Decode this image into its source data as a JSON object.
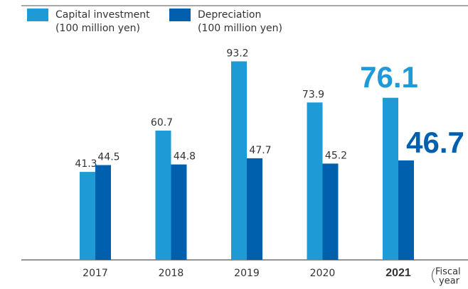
{
  "chart_data": {
    "type": "bar",
    "categories": [
      "2017",
      "2018",
      "2019",
      "2020",
      "2021"
    ],
    "series": [
      {
        "name": "Capital investment",
        "unit": "(100 million yen)",
        "color": "#1e9ad6",
        "values": [
          41.3,
          60.7,
          93.2,
          73.9,
          76.1
        ]
      },
      {
        "name": "Depreciation",
        "unit": "(100 million yen)",
        "color": "#0060ae",
        "values": [
          44.5,
          44.8,
          47.7,
          45.2,
          46.7
        ]
      }
    ],
    "x_label": [
      "Fiscal",
      "year"
    ]
  }
}
